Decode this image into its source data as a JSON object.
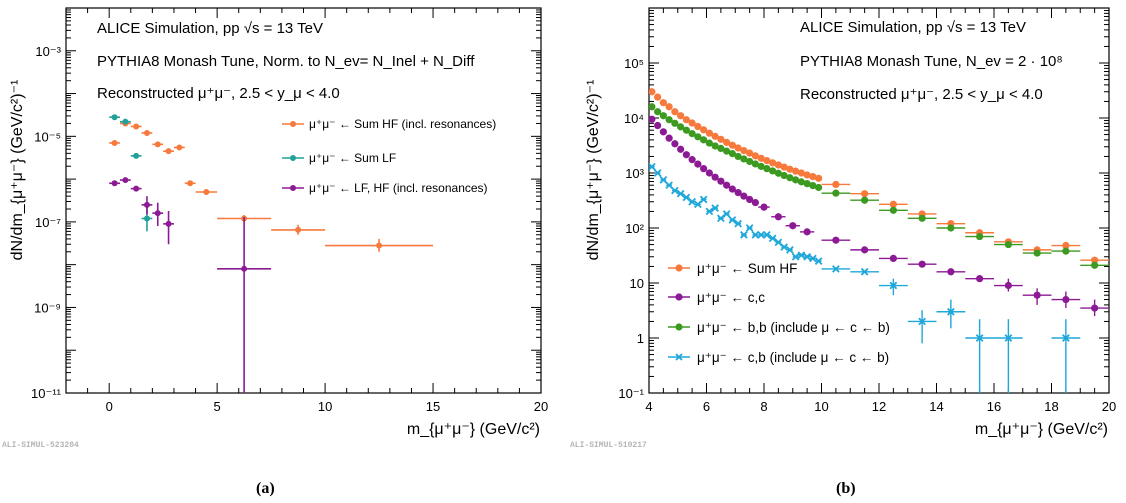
{
  "chart_data": [
    {
      "panel_label": "(a)",
      "watermark": "ALI-SIMUL-523204",
      "type": "scatter",
      "log_y": true,
      "xlim": [
        -2,
        20
      ],
      "ylim_log10": [
        -11,
        -2
      ],
      "xlabel": "m_{μ⁺μ⁻} (GeV/c²)",
      "ylabel": "dN/dm_{μ⁺μ⁻} (GeV/c²)⁻¹",
      "x_tick_labels": [
        "0",
        "5",
        "10",
        "15",
        "20"
      ],
      "y_tick_labels": [
        "10⁻¹¹",
        "10⁻⁹",
        "10⁻⁷",
        "10⁻⁵",
        "10⁻³"
      ],
      "annotations": [
        "ALICE Simulation, pp √s = 13 TeV",
        "PYTHIA8 Monash Tune, Norm. to N_ev= N_Inel + N_Diff",
        "Reconstructed μ⁺μ⁻, 2.5 < y_μ < 4.0"
      ],
      "legend_position": "top-right",
      "series": [
        {
          "name": "μ⁺μ⁻ ← Sum HF (incl. resonances)",
          "color": "#f7793b",
          "points": [
            {
              "x": 0.25,
              "xlo": 0.0,
              "xhi": 0.5,
              "y": 7e-06
            },
            {
              "x": 0.75,
              "xlo": 0.5,
              "xhi": 1.0,
              "y": 2e-05
            },
            {
              "x": 1.25,
              "xlo": 1.0,
              "xhi": 1.5,
              "y": 1.7e-05
            },
            {
              "x": 1.75,
              "xlo": 1.5,
              "xhi": 2.0,
              "y": 1.2e-05
            },
            {
              "x": 2.25,
              "xlo": 2.0,
              "xhi": 2.5,
              "y": 6.5e-06
            },
            {
              "x": 2.75,
              "xlo": 2.5,
              "xhi": 3.0,
              "y": 4.5e-06
            },
            {
              "x": 3.25,
              "xlo": 3.0,
              "xhi": 3.5,
              "y": 5.5e-06
            },
            {
              "x": 3.75,
              "xlo": 3.5,
              "xhi": 4.0,
              "y": 8e-07
            },
            {
              "x": 4.5,
              "xlo": 4.0,
              "xhi": 5.0,
              "y": 5e-07
            },
            {
              "x": 6.25,
              "xlo": 5.0,
              "xhi": 7.5,
              "y": 1.2e-07,
              "elo": 1e-07,
              "ehi": 1.45e-07
            },
            {
              "x": 8.75,
              "xlo": 7.5,
              "xhi": 10.0,
              "y": 6.5e-08,
              "elo": 5e-08,
              "ehi": 8.5e-08
            },
            {
              "x": 12.5,
              "xlo": 10.0,
              "xhi": 15.0,
              "y": 2.8e-08,
              "elo": 2e-08,
              "ehi": 4e-08
            }
          ]
        },
        {
          "name": "μ⁺μ⁻ ← Sum LF",
          "color": "#21a19a",
          "points": [
            {
              "x": 0.25,
              "xlo": 0.0,
              "xhi": 0.5,
              "y": 2.8e-05
            },
            {
              "x": 0.75,
              "xlo": 0.5,
              "xhi": 1.0,
              "y": 2.2e-05
            },
            {
              "x": 1.25,
              "xlo": 1.0,
              "xhi": 1.5,
              "y": 3.5e-06
            },
            {
              "x": 1.75,
              "xlo": 1.5,
              "xhi": 2.0,
              "y": 1.2e-07,
              "elo": 6e-08,
              "ehi": 2.8e-07
            }
          ]
        },
        {
          "name": "μ⁺μ⁻ ← LF, HF (incl. resonances)",
          "color": "#8c1a94",
          "points": [
            {
              "x": 0.25,
              "xlo": 0.0,
              "xhi": 0.5,
              "y": 8e-07
            },
            {
              "x": 0.75,
              "xlo": 0.5,
              "xhi": 1.0,
              "y": 9.5e-07
            },
            {
              "x": 1.25,
              "xlo": 1.0,
              "xhi": 1.5,
              "y": 6e-07
            },
            {
              "x": 1.75,
              "xlo": 1.5,
              "xhi": 2.0,
              "y": 2.5e-07,
              "elo": 1.5e-07,
              "ehi": 4e-07
            },
            {
              "x": 2.25,
              "xlo": 2.0,
              "xhi": 2.5,
              "y": 1.6e-07,
              "elo": 8e-08,
              "ehi": 2.8e-07
            },
            {
              "x": 2.75,
              "xlo": 2.5,
              "xhi": 3.0,
              "y": 9e-08,
              "elo": 3e-08,
              "ehi": 1.8e-07
            },
            {
              "x": 6.25,
              "xlo": 5.0,
              "xhi": 7.5,
              "y": 8e-09,
              "elo": 1e-11,
              "ehi": 1.3e-07
            }
          ]
        }
      ]
    },
    {
      "panel_label": "(b)",
      "watermark": "ALI-SIMUL-510217",
      "type": "scatter",
      "log_y": true,
      "xlim": [
        4,
        20
      ],
      "ylim_log10": [
        -1,
        6
      ],
      "xlabel": "m_{μ⁺μ⁻} (GeV/c²)",
      "ylabel": "dN/dm_{μ⁺μ⁻} (GeV/c²)⁻¹",
      "x_tick_labels": [
        "4",
        "6",
        "8",
        "10",
        "12",
        "14",
        "16",
        "18",
        "20"
      ],
      "y_tick_labels": [
        "10⁻¹",
        "1",
        "10",
        "10²",
        "10³",
        "10⁴",
        "10⁵"
      ],
      "annotations": [
        "ALICE Simulation, pp √s = 13 TeV",
        "PYTHIA8 Monash Tune, N_ev = 2 · 10⁸",
        "Reconstructed μ⁺μ⁻, 2.5 < y_μ < 4.0"
      ],
      "legend_position": "bottom-left",
      "series": [
        {
          "name": "μ⁺μ⁻ ← Sum HF",
          "color": "#f7793b",
          "marker": "circle",
          "x": [
            4.1,
            4.3,
            4.5,
            4.7,
            4.9,
            5.1,
            5.3,
            5.5,
            5.7,
            5.9,
            6.1,
            6.3,
            6.5,
            6.7,
            6.9,
            7.1,
            7.3,
            7.5,
            7.7,
            7.9,
            8.1,
            8.3,
            8.5,
            8.7,
            8.9,
            9.1,
            9.3,
            9.5,
            9.7,
            9.9,
            10.5,
            11.5,
            12.5,
            13.5,
            14.5,
            15.5,
            16.5,
            17.5,
            18.5,
            19.5
          ],
          "xerr": [
            0.1,
            0.1,
            0.1,
            0.1,
            0.1,
            0.1,
            0.1,
            0.1,
            0.1,
            0.1,
            0.1,
            0.1,
            0.1,
            0.1,
            0.1,
            0.1,
            0.1,
            0.1,
            0.1,
            0.1,
            0.1,
            0.1,
            0.1,
            0.1,
            0.1,
            0.1,
            0.1,
            0.1,
            0.1,
            0.1,
            0.5,
            0.5,
            0.5,
            0.5,
            0.5,
            0.5,
            0.5,
            0.5,
            0.5,
            0.5
          ],
          "y": [
            30000,
            24000,
            19000,
            16000,
            13000,
            11000,
            9300,
            8100,
            7000,
            6100,
            5300,
            4650,
            4100,
            3600,
            3200,
            2850,
            2550,
            2300,
            2050,
            1850,
            1680,
            1530,
            1400,
            1280,
            1170,
            1080,
            1000,
            920,
            860,
            800,
            620,
            420,
            270,
            180,
            120,
            82,
            56,
            40,
            48,
            26
          ]
        },
        {
          "name": "μ⁺μ⁻ ← c,c",
          "color": "#8c1a94",
          "marker": "circle",
          "x": [
            4.1,
            4.3,
            4.5,
            4.7,
            4.9,
            5.1,
            5.3,
            5.5,
            5.7,
            5.9,
            6.1,
            6.3,
            6.5,
            6.7,
            6.9,
            7.1,
            7.3,
            7.5,
            7.7,
            8.0,
            8.5,
            9.0,
            9.5,
            10.5,
            11.5,
            12.5,
            13.5,
            14.5,
            15.5,
            16.5,
            17.5,
            18.5,
            19.5
          ],
          "xerr": [
            0.1,
            0.1,
            0.1,
            0.1,
            0.1,
            0.1,
            0.1,
            0.1,
            0.1,
            0.1,
            0.1,
            0.1,
            0.1,
            0.1,
            0.1,
            0.1,
            0.1,
            0.1,
            0.1,
            0.2,
            0.25,
            0.25,
            0.25,
            0.5,
            0.5,
            0.5,
            0.5,
            0.5,
            0.5,
            0.5,
            0.5,
            0.5,
            0.5
          ],
          "y": [
            9500,
            7300,
            5600,
            4300,
            3400,
            2700,
            2150,
            1750,
            1450,
            1200,
            1000,
            840,
            710,
            600,
            510,
            440,
            380,
            330,
            290,
            240,
            160,
            110,
            85,
            60,
            40,
            28,
            22,
            16,
            12,
            9,
            6,
            5,
            3.5
          ],
          "ylo": [
            null,
            null,
            null,
            null,
            null,
            null,
            null,
            null,
            null,
            null,
            null,
            null,
            null,
            null,
            null,
            null,
            null,
            null,
            null,
            null,
            null,
            null,
            null,
            null,
            null,
            null,
            null,
            null,
            null,
            7,
            4,
            3.5,
            2.5
          ],
          "yhi": [
            null,
            null,
            null,
            null,
            null,
            null,
            null,
            null,
            null,
            null,
            null,
            null,
            null,
            null,
            null,
            null,
            null,
            null,
            null,
            null,
            null,
            null,
            null,
            null,
            null,
            null,
            null,
            null,
            null,
            12,
            8,
            7,
            5
          ]
        },
        {
          "name": "μ⁺μ⁻ ← b,b (include μ ← c ← b)",
          "color": "#3d9a21",
          "marker": "circle",
          "x": [
            4.1,
            4.3,
            4.5,
            4.7,
            4.9,
            5.1,
            5.3,
            5.5,
            5.7,
            5.9,
            6.1,
            6.3,
            6.5,
            6.7,
            6.9,
            7.1,
            7.3,
            7.5,
            7.7,
            7.9,
            8.1,
            8.3,
            8.5,
            8.7,
            8.9,
            9.1,
            9.3,
            9.5,
            9.7,
            9.9,
            10.5,
            11.5,
            12.5,
            13.5,
            14.5,
            15.5,
            16.5,
            17.5,
            18.5,
            19.5
          ],
          "xerr": [
            0.1,
            0.1,
            0.1,
            0.1,
            0.1,
            0.1,
            0.1,
            0.1,
            0.1,
            0.1,
            0.1,
            0.1,
            0.1,
            0.1,
            0.1,
            0.1,
            0.1,
            0.1,
            0.1,
            0.1,
            0.1,
            0.1,
            0.1,
            0.1,
            0.1,
            0.1,
            0.1,
            0.1,
            0.1,
            0.1,
            0.5,
            0.5,
            0.5,
            0.5,
            0.5,
            0.5,
            0.5,
            0.5,
            0.5,
            0.5
          ],
          "y": [
            16000,
            13000,
            11000,
            9300,
            8000,
            6900,
            6000,
            5200,
            4550,
            4000,
            3500,
            3100,
            2800,
            2500,
            2250,
            2000,
            1800,
            1620,
            1460,
            1320,
            1200,
            1090,
            990,
            900,
            820,
            750,
            690,
            640,
            590,
            545,
            430,
            320,
            210,
            150,
            100,
            70,
            50,
            35,
            38,
            21
          ]
        },
        {
          "name": "μ⁺μ⁻ ← c,b (include μ ← c ← b)",
          "color": "#1fa7d9",
          "marker": "x",
          "x": [
            4.1,
            4.3,
            4.5,
            4.7,
            4.9,
            5.1,
            5.3,
            5.5,
            5.7,
            5.9,
            6.1,
            6.3,
            6.5,
            6.7,
            6.9,
            7.1,
            7.3,
            7.5,
            7.7,
            7.9,
            8.1,
            8.3,
            8.5,
            8.7,
            8.9,
            9.1,
            9.3,
            9.5,
            9.7,
            9.9,
            10.5,
            11.5,
            12.5,
            13.5,
            14.5,
            15.5,
            16.5,
            17.5,
            18.5,
            19.5
          ],
          "xerr": [
            0.1,
            0.1,
            0.1,
            0.1,
            0.1,
            0.1,
            0.1,
            0.1,
            0.1,
            0.1,
            0.1,
            0.1,
            0.1,
            0.1,
            0.1,
            0.1,
            0.1,
            0.1,
            0.1,
            0.1,
            0.1,
            0.1,
            0.1,
            0.1,
            0.1,
            0.1,
            0.1,
            0.1,
            0.1,
            0.1,
            0.5,
            0.5,
            0.5,
            0.5,
            0.5,
            0.5,
            0.5,
            0.5,
            0.5,
            0.5
          ],
          "y": [
            1300,
            1000,
            750,
            600,
            480,
            420,
            360,
            300,
            270,
            330,
            200,
            230,
            150,
            180,
            140,
            120,
            75,
            100,
            75,
            75,
            75,
            65,
            55,
            45,
            40,
            30,
            32,
            30,
            28,
            25,
            18,
            16,
            9,
            2,
            3,
            1,
            1,
            null,
            1,
            null
          ],
          "ylo": [
            null,
            null,
            null,
            null,
            null,
            null,
            null,
            null,
            null,
            null,
            null,
            null,
            null,
            null,
            null,
            null,
            null,
            null,
            null,
            null,
            null,
            null,
            null,
            null,
            null,
            null,
            null,
            null,
            null,
            null,
            null,
            null,
            6,
            0.8,
            1.5,
            0.1,
            0.1,
            null,
            0.1,
            null
          ],
          "yhi": [
            null,
            null,
            null,
            null,
            null,
            null,
            null,
            null,
            null,
            null,
            null,
            null,
            null,
            null,
            null,
            null,
            null,
            null,
            null,
            null,
            null,
            null,
            null,
            null,
            null,
            null,
            null,
            null,
            null,
            null,
            null,
            null,
            12,
            3.2,
            5,
            2.2,
            2.2,
            null,
            2.2,
            null
          ]
        }
      ]
    }
  ]
}
